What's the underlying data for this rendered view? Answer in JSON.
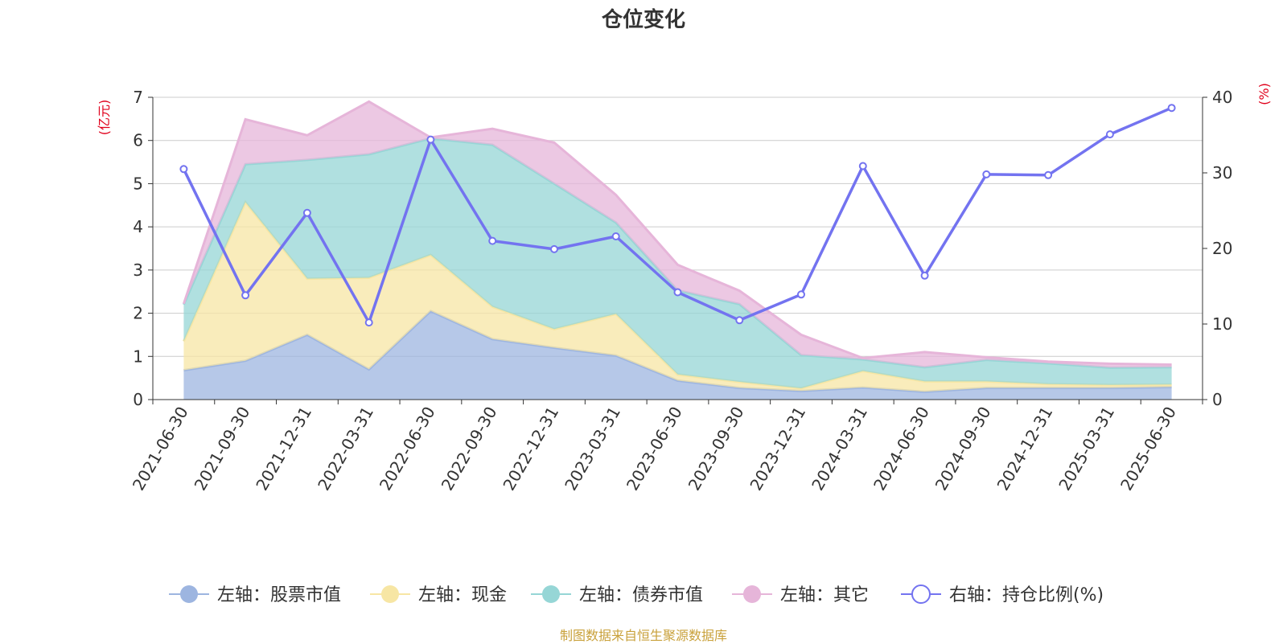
{
  "chart_data": {
    "type": "area",
    "title": "仓位变化",
    "y_left_label": "(亿元)",
    "y_right_label": "(%)",
    "y_left_range": [
      0,
      7
    ],
    "y_right_range": [
      0,
      40
    ],
    "y_left_ticks": [
      "0",
      "1",
      "2",
      "3",
      "4",
      "5",
      "6",
      "7"
    ],
    "y_right_ticks": [
      "0",
      "10",
      "20",
      "30",
      "40"
    ],
    "grid": true,
    "legend_position": "bottom",
    "categories": [
      "2021-06-30",
      "2021-09-30",
      "2021-12-31",
      "2022-03-31",
      "2022-06-30",
      "2022-09-30",
      "2022-12-31",
      "2023-03-31",
      "2023-06-30",
      "2023-09-30",
      "2023-12-31",
      "2024-03-31",
      "2024-06-30",
      "2024-09-30",
      "2024-12-31",
      "2025-03-31",
      "2025-06-30"
    ],
    "stacked_series": [
      {
        "name": "左轴：股票市值",
        "color": "#9db5e0",
        "values": [
          0.68,
          0.9,
          1.5,
          0.7,
          2.05,
          1.4,
          1.2,
          1.02,
          0.44,
          0.27,
          0.2,
          0.28,
          0.18,
          0.27,
          0.27,
          0.27,
          0.29
        ]
      },
      {
        "name": "左轴：现金",
        "color": "#f7e6a4",
        "values": [
          0.67,
          3.67,
          1.3,
          2.12,
          1.3,
          0.75,
          0.43,
          0.96,
          0.14,
          0.14,
          0.06,
          0.38,
          0.24,
          0.15,
          0.09,
          0.07,
          0.06
        ]
      },
      {
        "name": "左轴：债券市值",
        "color": "#96d6d6",
        "values": [
          0.85,
          0.88,
          2.75,
          2.86,
          2.7,
          3.75,
          3.37,
          2.12,
          1.95,
          1.8,
          0.77,
          0.27,
          0.33,
          0.5,
          0.48,
          0.4,
          0.4
        ]
      },
      {
        "name": "左轴：其它",
        "color": "#e6b5d9",
        "values": [
          0.02,
          1.04,
          0.57,
          1.22,
          0.02,
          0.37,
          0.95,
          0.64,
          0.59,
          0.31,
          0.47,
          0.03,
          0.35,
          0.06,
          0.04,
          0.09,
          0.06
        ]
      }
    ],
    "line_series": {
      "name": "右轴：持仓比例(%)",
      "color": "#7373f0",
      "values": [
        30.5,
        13.8,
        24.7,
        10.2,
        34.4,
        21.0,
        19.9,
        21.6,
        14.2,
        10.5,
        13.9,
        30.9,
        16.4,
        29.8,
        29.7,
        35.1,
        38.6
      ]
    },
    "legend": [
      "左轴：股票市值",
      "左轴：现金",
      "左轴：债券市值",
      "左轴：其它",
      "右轴：持仓比例(%)"
    ],
    "source_note": "制图数据来自恒生聚源数据库"
  }
}
